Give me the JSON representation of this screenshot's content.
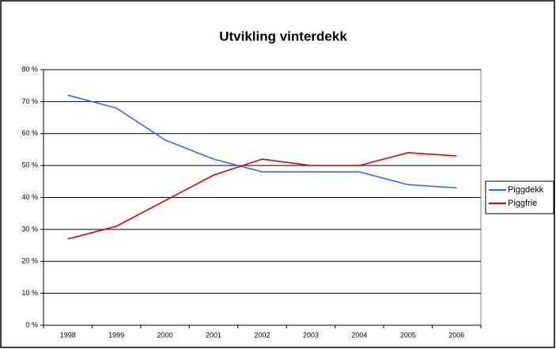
{
  "chart_data": {
    "type": "line",
    "title": "Utvikling vinterdekk",
    "categories": [
      "1998",
      "1999",
      "2000",
      "2001",
      "2002",
      "2003",
      "2004",
      "2005",
      "2006"
    ],
    "series": [
      {
        "name": "Piggdekk",
        "color": "#3366ff",
        "values": [
          72,
          68,
          58,
          52,
          48,
          48,
          48,
          44,
          43
        ]
      },
      {
        "name": "Piggfrie",
        "color": "#dd0000",
        "values": [
          27,
          31,
          39,
          47,
          52,
          50,
          50,
          54,
          53
        ]
      }
    ],
    "ylim": [
      0,
      80
    ],
    "yticks": [
      {
        "value": 0,
        "label": "0 %"
      },
      {
        "value": 10,
        "label": "10 %"
      },
      {
        "value": 20,
        "label": "20 %"
      },
      {
        "value": 30,
        "label": "30 %"
      },
      {
        "value": 40,
        "label": "40 %"
      },
      {
        "value": 50,
        "label": "50 %"
      },
      {
        "value": 60,
        "label": "60 %"
      },
      {
        "value": 70,
        "label": "70 %"
      },
      {
        "value": 80,
        "label": "80 %"
      }
    ],
    "grid": true,
    "legend": "right"
  }
}
